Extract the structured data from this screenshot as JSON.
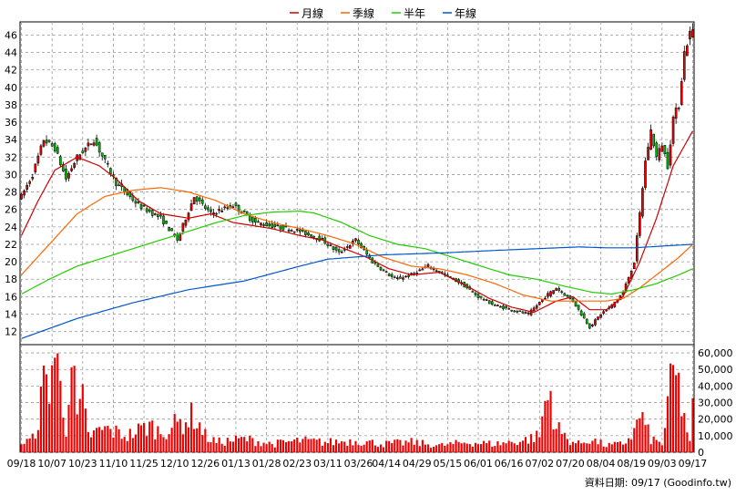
{
  "legend": [
    {
      "name": "月線",
      "color": "#cc0000"
    },
    {
      "name": "季線",
      "color": "#ff6600"
    },
    {
      "name": "半年",
      "color": "#22cc00"
    },
    {
      "name": "年線",
      "color": "#0055cc"
    }
  ],
  "footer": "資料日期: 09/17  (Goodinfo.tw)",
  "chart_data": [
    {
      "type": "candlestick",
      "grid": true,
      "ylim": [
        10.5,
        47.5
      ],
      "yticks": [
        12,
        14,
        16,
        18,
        20,
        22,
        24,
        26,
        28,
        30,
        32,
        34,
        36,
        38,
        40,
        42,
        44,
        46
      ],
      "xtick_labels": [
        "09/18",
        "10/07",
        "10/23",
        "11/10",
        "11/25",
        "12/10",
        "12/26",
        "01/13",
        "01/28",
        "02/23",
        "03/11",
        "03/26",
        "04/14",
        "04/29",
        "05/15",
        "06/01",
        "06/16",
        "07/02",
        "07/20",
        "08/04",
        "08/19",
        "09/03",
        "09/17"
      ],
      "candle_count": 242,
      "candle_keypoints": [
        [
          0,
          27.5
        ],
        [
          4,
          30
        ],
        [
          8,
          34
        ],
        [
          12,
          33
        ],
        [
          16,
          29.5
        ],
        [
          20,
          32
        ],
        [
          26,
          34
        ],
        [
          34,
          29
        ],
        [
          42,
          26.5
        ],
        [
          50,
          25
        ],
        [
          56,
          22.5
        ],
        [
          62,
          27.5
        ],
        [
          68,
          25.5
        ],
        [
          76,
          26.5
        ],
        [
          84,
          24.5
        ],
        [
          92,
          24
        ],
        [
          100,
          23.5
        ],
        [
          108,
          22.5
        ],
        [
          114,
          21
        ],
        [
          120,
          22.5
        ],
        [
          126,
          20
        ],
        [
          134,
          18
        ],
        [
          140,
          18.5
        ],
        [
          146,
          19.5
        ],
        [
          152,
          18.5
        ],
        [
          158,
          17.5
        ],
        [
          164,
          16
        ],
        [
          170,
          15
        ],
        [
          176,
          14.5
        ],
        [
          182,
          14
        ],
        [
          188,
          16
        ],
        [
          192,
          17
        ],
        [
          198,
          15.5
        ],
        [
          204,
          12.5
        ],
        [
          208,
          14
        ],
        [
          212,
          15
        ],
        [
          216,
          16.5
        ],
        [
          220,
          20
        ],
        [
          222,
          25.5
        ],
        [
          224,
          31.5
        ],
        [
          226,
          35
        ],
        [
          228,
          32
        ],
        [
          230,
          33.5
        ],
        [
          232,
          31
        ],
        [
          234,
          36.5
        ],
        [
          236,
          38
        ],
        [
          238,
          44
        ],
        [
          240,
          46.2
        ],
        [
          241,
          46.5
        ]
      ],
      "series": [
        {
          "name": "月線",
          "color": "#cc0000",
          "values": [
            [
              0,
              23
            ],
            [
              6,
              27
            ],
            [
              12,
              30.5
            ],
            [
              20,
              32
            ],
            [
              28,
              31
            ],
            [
              34,
              29.5
            ],
            [
              42,
              27
            ],
            [
              50,
              25.5
            ],
            [
              60,
              25
            ],
            [
              68,
              25.5
            ],
            [
              76,
              24.5
            ],
            [
              90,
              23.8
            ],
            [
              100,
              23
            ],
            [
              108,
              22.5
            ],
            [
              116,
              21.5
            ],
            [
              124,
              20.5
            ],
            [
              132,
              19.2
            ],
            [
              140,
              18.5
            ],
            [
              150,
              18.8
            ],
            [
              160,
              17.2
            ],
            [
              168,
              15.8
            ],
            [
              176,
              14.8
            ],
            [
              184,
              14.2
            ],
            [
              192,
              15.5
            ],
            [
              198,
              16
            ],
            [
              204,
              14.5
            ],
            [
              210,
              14.5
            ],
            [
              216,
              16
            ],
            [
              222,
              20
            ],
            [
              228,
              25
            ],
            [
              234,
              31
            ],
            [
              241,
              35
            ]
          ]
        },
        {
          "name": "季線",
          "color": "#ff6600",
          "values": [
            [
              0,
              18.5
            ],
            [
              10,
              22
            ],
            [
              20,
              25.5
            ],
            [
              30,
              27.5
            ],
            [
              40,
              28.2
            ],
            [
              50,
              28.5
            ],
            [
              60,
              28
            ],
            [
              70,
              27
            ],
            [
              80,
              25.5
            ],
            [
              90,
              24.5
            ],
            [
              100,
              23.8
            ],
            [
              110,
              23
            ],
            [
              120,
              22
            ],
            [
              130,
              20.5
            ],
            [
              140,
              19.5
            ],
            [
              150,
              19.2
            ],
            [
              160,
              18.5
            ],
            [
              170,
              17.5
            ],
            [
              180,
              16.2
            ],
            [
              190,
              15.5
            ],
            [
              200,
              15.5
            ],
            [
              210,
              15.5
            ],
            [
              216,
              15.8
            ],
            [
              222,
              17
            ],
            [
              230,
              19
            ],
            [
              236,
              20.5
            ],
            [
              241,
              22
            ]
          ]
        },
        {
          "name": "半年",
          "color": "#22cc00",
          "values": [
            [
              0,
              16.3
            ],
            [
              10,
              18
            ],
            [
              20,
              19.5
            ],
            [
              30,
              20.5
            ],
            [
              40,
              21.5
            ],
            [
              50,
              22.5
            ],
            [
              60,
              23.5
            ],
            [
              70,
              24.5
            ],
            [
              80,
              25.3
            ],
            [
              90,
              25.7
            ],
            [
              100,
              25.8
            ],
            [
              105,
              25.6
            ],
            [
              115,
              24.5
            ],
            [
              125,
              23
            ],
            [
              135,
              22
            ],
            [
              145,
              21.5
            ],
            [
              155,
              20.5
            ],
            [
              165,
              19.5
            ],
            [
              175,
              18.5
            ],
            [
              185,
              18
            ],
            [
              195,
              17.2
            ],
            [
              205,
              16.5
            ],
            [
              212,
              16.3
            ],
            [
              220,
              16.8
            ],
            [
              228,
              17.5
            ],
            [
              236,
              18.5
            ],
            [
              241,
              19.2
            ]
          ]
        },
        {
          "name": "年線",
          "color": "#0055cc",
          "values": [
            [
              0,
              11.2
            ],
            [
              20,
              13.5
            ],
            [
              40,
              15.3
            ],
            [
              60,
              16.8
            ],
            [
              80,
              17.8
            ],
            [
              100,
              19.5
            ],
            [
              110,
              20.3
            ],
            [
              130,
              20.8
            ],
            [
              150,
              21
            ],
            [
              170,
              21.3
            ],
            [
              185,
              21.5
            ],
            [
              200,
              21.7
            ],
            [
              210,
              21.6
            ],
            [
              220,
              21.6
            ],
            [
              230,
              21.8
            ],
            [
              241,
              22
            ]
          ]
        }
      ]
    },
    {
      "type": "bar",
      "ylim": [
        0,
        65000
      ],
      "yticks": [
        0,
        10000,
        20000,
        30000,
        40000,
        50000,
        60000
      ],
      "ytick_labels": [
        "0",
        "10,000",
        "20,000",
        "30,000",
        "40,000",
        "50,000",
        "60,000"
      ],
      "bar_count": 242,
      "color": "#ee0000",
      "volume_keypoints": [
        [
          0,
          5000
        ],
        [
          4,
          8000
        ],
        [
          6,
          20000
        ],
        [
          8,
          40000
        ],
        [
          10,
          45000
        ],
        [
          12,
          60000
        ],
        [
          14,
          38000
        ],
        [
          16,
          15000
        ],
        [
          17,
          45000
        ],
        [
          18,
          55000
        ],
        [
          20,
          20000
        ],
        [
          22,
          30000
        ],
        [
          24,
          10000
        ],
        [
          30,
          14000
        ],
        [
          38,
          10000
        ],
        [
          46,
          16000
        ],
        [
          50,
          12000
        ],
        [
          56,
          17000
        ],
        [
          62,
          22000
        ],
        [
          66,
          10000
        ],
        [
          70,
          6000
        ],
        [
          80,
          8000
        ],
        [
          90,
          5000
        ],
        [
          100,
          7000
        ],
        [
          110,
          6000
        ],
        [
          120,
          7000
        ],
        [
          130,
          5000
        ],
        [
          140,
          6000
        ],
        [
          150,
          4000
        ],
        [
          160,
          6000
        ],
        [
          170,
          5000
        ],
        [
          180,
          7000
        ],
        [
          186,
          10000
        ],
        [
          188,
          30000
        ],
        [
          190,
          35000
        ],
        [
          192,
          15000
        ],
        [
          196,
          8000
        ],
        [
          200,
          5000
        ],
        [
          204,
          8000
        ],
        [
          210,
          4000
        ],
        [
          216,
          5000
        ],
        [
          220,
          12000
        ],
        [
          222,
          23000
        ],
        [
          226,
          8000
        ],
        [
          230,
          5000
        ],
        [
          234,
          48000
        ],
        [
          236,
          38000
        ],
        [
          238,
          22000
        ],
        [
          240,
          5000
        ],
        [
          241,
          28000
        ]
      ]
    }
  ]
}
